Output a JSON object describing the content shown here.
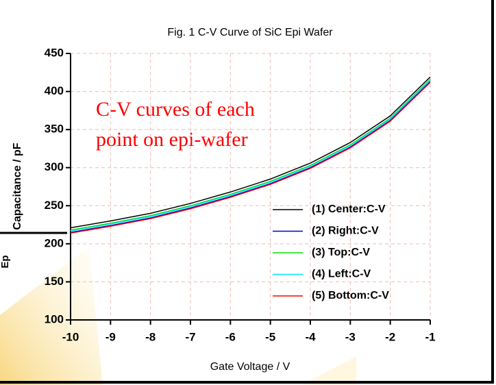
{
  "background_text": "Ep",
  "chart_data": {
    "type": "line",
    "title": "Fig. 1  C-V Curve of SiC Epi Wafer",
    "xlabel": "Gate Voltage / V",
    "ylabel": "Capacitance / pF",
    "annotation": [
      "C-V curves of  each",
      "point on epi-wafer"
    ],
    "x": [
      -10,
      -9,
      -8,
      -7,
      -6,
      -5,
      -4,
      -3,
      -2,
      -1
    ],
    "series": [
      {
        "name": "(1) Center:C-V",
        "color": "#000000",
        "values": [
          221,
          230,
          240,
          253,
          268,
          285,
          306,
          333,
          368,
          419
        ]
      },
      {
        "name": "(2) Right:C-V",
        "color": "#0000cc",
        "values": [
          215,
          224,
          234,
          247,
          262,
          279,
          300,
          327,
          362,
          413
        ]
      },
      {
        "name": "(3) Top:C-V",
        "color": "#00dd00",
        "values": [
          218,
          227,
          237,
          250,
          265,
          282,
          303,
          330,
          365,
          416
        ]
      },
      {
        "name": "(4) Left:C-V",
        "color": "#00e5ff",
        "values": [
          217,
          226,
          236,
          249,
          264,
          281,
          302,
          329,
          364,
          415
        ]
      },
      {
        "name": "(5) Bottom:C-V",
        "color": "#ff0000",
        "values": [
          214,
          223,
          233,
          246,
          261,
          278,
          299,
          326,
          361,
          412
        ]
      }
    ],
    "xlim": [
      -10,
      -1
    ],
    "xticks": [
      -10,
      -9,
      -8,
      -7,
      -6,
      -5,
      -4,
      -3,
      -2,
      -1
    ],
    "ylim": [
      100,
      450
    ],
    "yticks": [
      100,
      150,
      200,
      250,
      300,
      350,
      400,
      450
    ],
    "grid": true,
    "legend": "lower right"
  }
}
